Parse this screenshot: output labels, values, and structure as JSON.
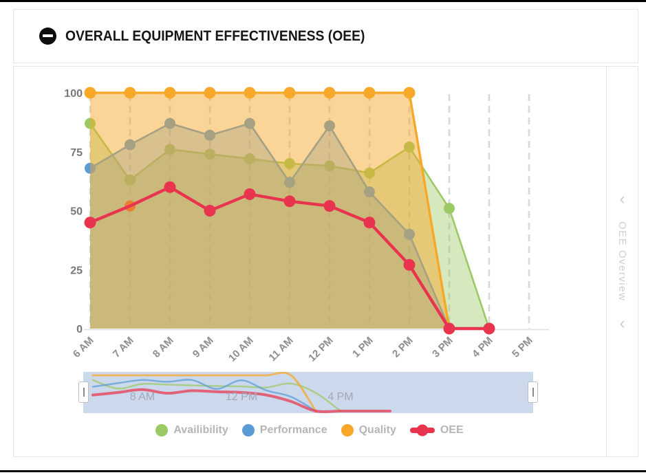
{
  "header": {
    "title": "OVERALL EQUIPMENT EFFECTIVENESS (OEE)",
    "collapse_icon": "minus-circle-icon"
  },
  "side_panel": {
    "label": "OEE Overview",
    "chevron": "‹"
  },
  "chart_data": {
    "type": "area",
    "x_labels": [
      "6 AM",
      "7 AM",
      "8 AM",
      "9 AM",
      "10 AM",
      "11 AM",
      "12 PM",
      "1 PM",
      "2 PM",
      "3 PM",
      "4 PM",
      "5 PM"
    ],
    "y_ticks": [
      100,
      75,
      50,
      25,
      0
    ],
    "ylim": [
      0,
      100
    ],
    "grid": "vertical-dashed",
    "legend_position": "bottom",
    "series": [
      {
        "name": "Availibility",
        "color": "#9BC963",
        "values": [
          87,
          63,
          76,
          74,
          72,
          70,
          69,
          66,
          77,
          51,
          0,
          null
        ]
      },
      {
        "name": "Performance",
        "color": "#5B9BD5",
        "values": [
          68,
          78,
          87,
          82,
          87,
          62,
          86,
          58,
          40,
          0,
          null,
          null
        ]
      },
      {
        "name": "Quality",
        "color": "#F7A828",
        "values": [
          100,
          100,
          100,
          100,
          100,
          100,
          100,
          100,
          100,
          0,
          null,
          null
        ]
      },
      {
        "name": "OEE",
        "color": "#E8344E",
        "values": [
          45,
          52,
          60,
          50,
          57,
          54,
          52,
          45,
          27,
          0,
          0,
          null
        ]
      }
    ],
    "point_overrides": [
      {
        "series": "OEE",
        "index": 1,
        "color": "#ED7D31",
        "note": "orange point drawn under the red line at 7 AM"
      }
    ]
  },
  "navigator": {
    "labels": [
      "8 AM",
      "12 PM",
      "4 PM"
    ]
  }
}
